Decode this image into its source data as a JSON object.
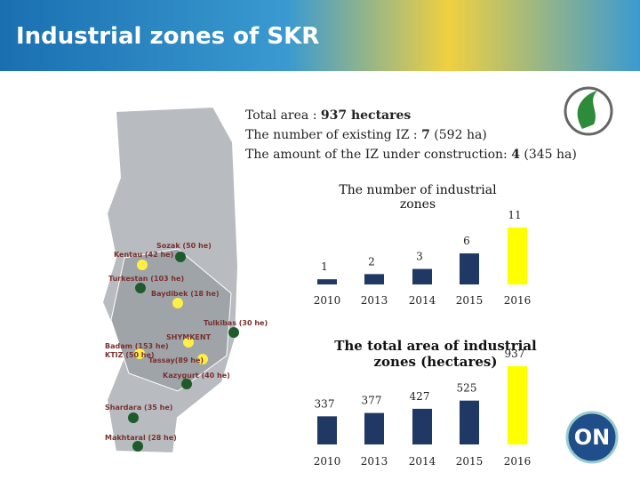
{
  "header": {
    "title": "Industrial zones of SKR"
  },
  "info": [
    [
      "Total area : ",
      "937 hectares"
    ],
    [
      "The number of existing IZ : ",
      "7",
      " (592 ha)"
    ],
    [
      "The amount of the IZ under construction: ",
      "4",
      " (345 ha)"
    ]
  ],
  "map_labels": [
    "Sozak (50 he)",
    "Kentau (42 he)",
    "Turkestan (103 he)",
    "Baydibek (18 he)",
    "Tulkibas (30 he)",
    "SHYMKENT",
    "Badam (153 he)",
    "KTIZ (50 he)",
    "Tassay(89 he)",
    "Kazygurt (40 he)",
    "Shardara (35 he)",
    "Makhtaral (28 he)"
  ],
  "logo": "ON",
  "chart_data": [
    {
      "type": "bar",
      "title": "The number of industrial zones",
      "categories": [
        "2010",
        "2013",
        "2014",
        "2015",
        "2016"
      ],
      "values": [
        1,
        2,
        3,
        6,
        11
      ],
      "colors": [
        "#1f3864",
        "#1f3864",
        "#1f3864",
        "#1f3864",
        "#ffff00"
      ]
    },
    {
      "type": "bar",
      "title": "The total area of industrial zones (hectares)",
      "categories": [
        "2010",
        "2013",
        "2014",
        "2015",
        "2016"
      ],
      "values": [
        337,
        377,
        427,
        525,
        937
      ],
      "colors": [
        "#1f3864",
        "#1f3864",
        "#1f3864",
        "#1f3864",
        "#ffff00"
      ]
    }
  ]
}
